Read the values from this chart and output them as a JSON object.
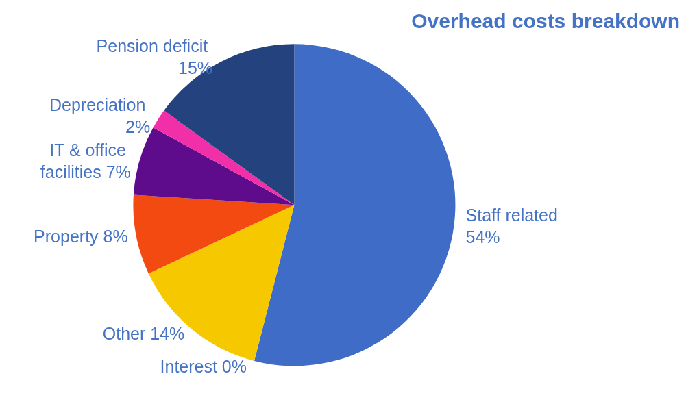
{
  "chart_data": {
    "type": "pie",
    "title": "Overhead costs breakdown",
    "categories": [
      "Staff related",
      "Interest",
      "Other",
      "Property",
      "IT & office facilities",
      "Depreciation",
      "Pension deficit"
    ],
    "values": [
      54,
      0,
      14,
      8,
      7,
      2,
      15
    ],
    "value_labels": [
      "54%",
      "0%",
      "14%",
      "8%",
      "7%",
      "2%",
      "15%"
    ],
    "colors": [
      "#3f6cc6",
      "#00b050",
      "#f5c800",
      "#f24a10",
      "#5e0b8c",
      "#f02fa8",
      "#24427e"
    ],
    "legend": false
  }
}
